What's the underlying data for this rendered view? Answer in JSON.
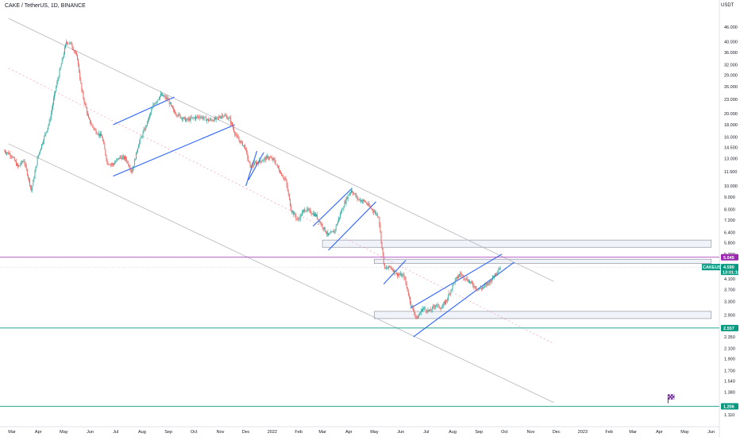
{
  "header": {
    "ticker": "CAKE / TetherUS, 1D, BINANCE",
    "unit": "USDT"
  },
  "colors": {
    "up": "#26a69a",
    "down": "#ef5350",
    "channel": "#2962ff",
    "trend": "#b2b5be",
    "zone": "#9598a1",
    "support": "#089981",
    "magenta": "#9c27b0",
    "dotted": "#f48fb1"
  },
  "badges": {
    "magenta": {
      "text": "5.045",
      "color": "#9c27b0"
    },
    "symbol": {
      "label": "CAKEUSDT",
      "price": "4.590",
      "countdown": "13:01:16",
      "color": "#089981"
    },
    "support_high": {
      "text": "2.557",
      "color": "#089981"
    },
    "support_low": {
      "text": "1.206",
      "color": "#089981"
    }
  },
  "chart_data": {
    "type": "candlestick",
    "title": "CAKE / TetherUS, 1D, BINANCE",
    "ylabel": "USDT",
    "y_scale": "log",
    "ylim": [
      1.03,
      52
    ],
    "x_tick_labels": [
      "Mar",
      "Apr",
      "May",
      "Jun",
      "Jul",
      "Aug",
      "Sep",
      "Oct",
      "Nov",
      "Dec",
      "2022",
      "Feb",
      "Mar",
      "Apr",
      "May",
      "Jun",
      "Jul",
      "Aug",
      "Sep",
      "Oct",
      "Nov",
      "Dec",
      "2023",
      "Feb",
      "Mar",
      "Apr",
      "May",
      "Jun"
    ],
    "y_ticks": [
      {
        "label": "46.000",
        "value": 46
      },
      {
        "label": "40.000",
        "value": 40
      },
      {
        "label": "36.000",
        "value": 36
      },
      {
        "label": "32.000",
        "value": 32
      },
      {
        "label": "29.000",
        "value": 29
      },
      {
        "label": "26.000",
        "value": 26
      },
      {
        "label": "23.000",
        "value": 23
      },
      {
        "label": "20.000",
        "value": 20
      },
      {
        "label": "18.000",
        "value": 18
      },
      {
        "label": "16.000",
        "value": 16
      },
      {
        "label": "14.500",
        "value": 14.5
      },
      {
        "label": "13.000",
        "value": 13
      },
      {
        "label": "11.500",
        "value": 11.5
      },
      {
        "label": "10.000",
        "value": 10
      },
      {
        "label": "9.000",
        "value": 9
      },
      {
        "label": "8.000",
        "value": 8
      },
      {
        "label": "7.200",
        "value": 7.2
      },
      {
        "label": "6.400",
        "value": 6.4
      },
      {
        "label": "5.800",
        "value": 5.8
      },
      {
        "label": "5.200",
        "value": 5.2
      },
      {
        "label": "4.100",
        "value": 4.1
      },
      {
        "label": "3.700",
        "value": 3.7
      },
      {
        "label": "3.300",
        "value": 3.3
      },
      {
        "label": "2.900",
        "value": 2.9
      },
      {
        "label": "2.350",
        "value": 2.35
      },
      {
        "label": "2.100",
        "value": 2.1
      },
      {
        "label": "1.900",
        "value": 1.9
      },
      {
        "label": "1.700",
        "value": 1.7
      },
      {
        "label": "1.540",
        "value": 1.54
      },
      {
        "label": "1.380",
        "value": 1.38
      },
      {
        "label": "1.110",
        "value": 1.11
      }
    ],
    "close_path": [
      {
        "date": "2021-02-20",
        "close": 14.0
      },
      {
        "date": "2021-02-28",
        "close": 13.5
      },
      {
        "date": "2021-03-08",
        "close": 12.0
      },
      {
        "date": "2021-03-15",
        "close": 12.8
      },
      {
        "date": "2021-03-24",
        "close": 9.6
      },
      {
        "date": "2021-04-01",
        "close": 13.5
      },
      {
        "date": "2021-04-08",
        "close": 16.0
      },
      {
        "date": "2021-04-14",
        "close": 18.5
      },
      {
        "date": "2021-04-20",
        "close": 24.0
      },
      {
        "date": "2021-04-26",
        "close": 30.0
      },
      {
        "date": "2021-05-04",
        "close": 40.0
      },
      {
        "date": "2021-05-10",
        "close": 39.0
      },
      {
        "date": "2021-05-17",
        "close": 34.0
      },
      {
        "date": "2021-05-22",
        "close": 25.0
      },
      {
        "date": "2021-05-30",
        "close": 19.0
      },
      {
        "date": "2021-06-07",
        "close": 17.0
      },
      {
        "date": "2021-06-15",
        "close": 16.0
      },
      {
        "date": "2021-06-21",
        "close": 12.5
      },
      {
        "date": "2021-06-28",
        "close": 12.3
      },
      {
        "date": "2021-07-06",
        "close": 13.2
      },
      {
        "date": "2021-07-13",
        "close": 13.0
      },
      {
        "date": "2021-07-20",
        "close": 11.5
      },
      {
        "date": "2021-07-28",
        "close": 15.0
      },
      {
        "date": "2021-08-06",
        "close": 18.0
      },
      {
        "date": "2021-08-15",
        "close": 22.0
      },
      {
        "date": "2021-08-23",
        "close": 24.0
      },
      {
        "date": "2021-08-31",
        "close": 23.0
      },
      {
        "date": "2021-09-07",
        "close": 20.5
      },
      {
        "date": "2021-09-15",
        "close": 19.5
      },
      {
        "date": "2021-09-22",
        "close": 18.8
      },
      {
        "date": "2021-09-30",
        "close": 19.2
      },
      {
        "date": "2021-10-08",
        "close": 19.5
      },
      {
        "date": "2021-10-18",
        "close": 18.8
      },
      {
        "date": "2021-10-27",
        "close": 19.0
      },
      {
        "date": "2021-11-04",
        "close": 19.8
      },
      {
        "date": "2021-11-12",
        "close": 19.0
      },
      {
        "date": "2021-11-20",
        "close": 16.0
      },
      {
        "date": "2021-11-30",
        "close": 14.5
      },
      {
        "date": "2021-12-06",
        "close": 12.0
      },
      {
        "date": "2021-12-13",
        "close": 12.5
      },
      {
        "date": "2021-12-20",
        "close": 12.8
      },
      {
        "date": "2021-12-27",
        "close": 13.2
      },
      {
        "date": "2022-01-03",
        "close": 12.8
      },
      {
        "date": "2022-01-10",
        "close": 11.5
      },
      {
        "date": "2022-01-17",
        "close": 10.5
      },
      {
        "date": "2022-01-23",
        "close": 8.0
      },
      {
        "date": "2022-01-31",
        "close": 7.2
      },
      {
        "date": "2022-02-08",
        "close": 8.0
      },
      {
        "date": "2022-02-15",
        "close": 7.8
      },
      {
        "date": "2022-02-22",
        "close": 7.5
      },
      {
        "date": "2022-03-01",
        "close": 6.8
      },
      {
        "date": "2022-03-08",
        "close": 6.2
      },
      {
        "date": "2022-03-15",
        "close": 6.5
      },
      {
        "date": "2022-03-23",
        "close": 7.8
      },
      {
        "date": "2022-03-30",
        "close": 9.0
      },
      {
        "date": "2022-04-04",
        "close": 9.6
      },
      {
        "date": "2022-04-12",
        "close": 8.8
      },
      {
        "date": "2022-04-20",
        "close": 8.6
      },
      {
        "date": "2022-04-28",
        "close": 8.0
      },
      {
        "date": "2022-05-06",
        "close": 7.5
      },
      {
        "date": "2022-05-10",
        "close": 5.5
      },
      {
        "date": "2022-05-13",
        "close": 4.5
      },
      {
        "date": "2022-05-20",
        "close": 4.6
      },
      {
        "date": "2022-05-27",
        "close": 4.3
      },
      {
        "date": "2022-06-05",
        "close": 4.2
      },
      {
        "date": "2022-06-13",
        "close": 3.2
      },
      {
        "date": "2022-06-20",
        "close": 2.8
      },
      {
        "date": "2022-06-27",
        "close": 3.1
      },
      {
        "date": "2022-07-05",
        "close": 3.0
      },
      {
        "date": "2022-07-12",
        "close": 3.2
      },
      {
        "date": "2022-07-19",
        "close": 3.1
      },
      {
        "date": "2022-07-26",
        "close": 3.4
      },
      {
        "date": "2022-08-03",
        "close": 4.0
      },
      {
        "date": "2022-08-10",
        "close": 4.3
      },
      {
        "date": "2022-08-17",
        "close": 4.1
      },
      {
        "date": "2022-08-24",
        "close": 3.9
      },
      {
        "date": "2022-08-31",
        "close": 3.7
      },
      {
        "date": "2022-09-07",
        "close": 3.8
      },
      {
        "date": "2022-09-14",
        "close": 4.0
      },
      {
        "date": "2022-09-20",
        "close": 4.3
      },
      {
        "date": "2022-09-26",
        "close": 4.59
      }
    ],
    "horizontal_levels": [
      {
        "name": "magenta",
        "value": 5.045
      },
      {
        "name": "support-high",
        "value": 2.557
      },
      {
        "name": "support-low",
        "value": 1.206
      }
    ],
    "zones": [
      {
        "date_from": "2022-03-01",
        "date_to": "2023-06-01",
        "value_low": 5.55,
        "value_high": 5.95
      },
      {
        "date_from": "2022-05-01",
        "date_to": "2023-06-01",
        "value_low": 4.75,
        "value_high": 4.95
      },
      {
        "date_from": "2022-05-01",
        "date_to": "2023-06-01",
        "value_low": 2.8,
        "value_high": 3.0
      }
    ],
    "trendlines": [
      {
        "style": "trend",
        "from": {
          "date": "2021-02-25",
          "value": 50.0
        },
        "to": {
          "date": "2022-11-28",
          "value": 4.0
        }
      },
      {
        "style": "trend",
        "from": {
          "date": "2021-02-25",
          "value": 15.0
        },
        "to": {
          "date": "2022-11-28",
          "value": 1.25
        }
      },
      {
        "style": "dotted",
        "from": {
          "date": "2021-02-25",
          "value": 31.0
        },
        "to": {
          "date": "2022-11-28",
          "value": 2.2
        }
      },
      {
        "style": "channel",
        "from": {
          "date": "2021-06-28",
          "value": 18.0
        },
        "to": {
          "date": "2021-09-08",
          "value": 23.5
        }
      },
      {
        "style": "channel",
        "from": {
          "date": "2021-06-28",
          "value": 11.0
        },
        "to": {
          "date": "2021-11-18",
          "value": 18.0
        }
      },
      {
        "style": "channel",
        "from": {
          "date": "2021-12-01",
          "value": 10.0
        },
        "to": {
          "date": "2021-12-14",
          "value": 14.0
        }
      },
      {
        "style": "channel",
        "from": {
          "date": "2021-12-04",
          "value": 10.6
        },
        "to": {
          "date": "2021-12-22",
          "value": 13.8
        }
      },
      {
        "style": "channel",
        "from": {
          "date": "2022-02-18",
          "value": 6.8
        },
        "to": {
          "date": "2022-04-05",
          "value": 9.8
        }
      },
      {
        "style": "channel",
        "from": {
          "date": "2022-03-08",
          "value": 5.4
        },
        "to": {
          "date": "2022-05-03",
          "value": 8.6
        }
      },
      {
        "style": "channel",
        "from": {
          "date": "2022-05-12",
          "value": 3.9
        },
        "to": {
          "date": "2022-06-07",
          "value": 4.9
        }
      },
      {
        "style": "channel",
        "from": {
          "date": "2022-06-13",
          "value": 3.1
        },
        "to": {
          "date": "2022-09-28",
          "value": 5.2
        }
      },
      {
        "style": "channel",
        "from": {
          "date": "2022-06-16",
          "value": 2.35
        },
        "to": {
          "date": "2022-10-12",
          "value": 4.8
        }
      }
    ],
    "flag_marker": {
      "date": "2023-04-15",
      "value": 1.3
    }
  }
}
